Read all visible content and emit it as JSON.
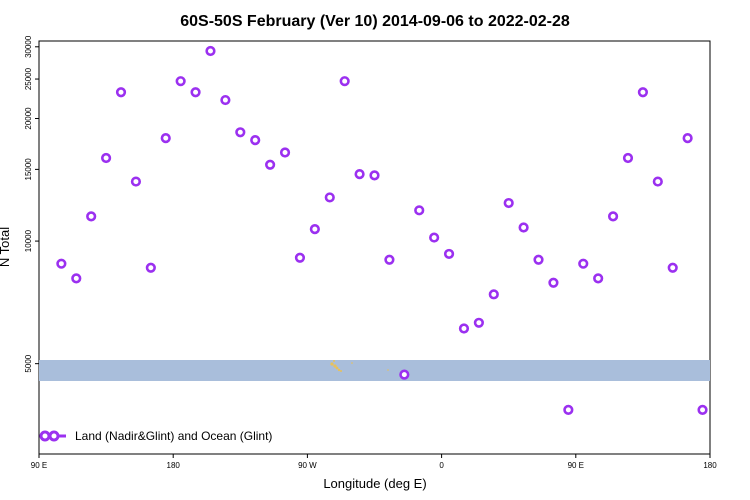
{
  "chart_data": {
    "type": "scatter",
    "title": "60S-50S February (Ver 10)   2014-09-06 to 2022-02-28",
    "xlabel": "Longitude (deg E)",
    "ylabel": "N Total",
    "xlim": [
      90,
      540
    ],
    "ylim": [
      3000,
      31000
    ],
    "y_scale": "log",
    "x_ticks": [
      {
        "value": 90,
        "label": "90 E"
      },
      {
        "value": 180,
        "label": "180"
      },
      {
        "value": 270,
        "label": "90 W"
      },
      {
        "value": 360,
        "label": "0"
      },
      {
        "value": 450,
        "label": "90 E"
      },
      {
        "value": 540,
        "label": "180"
      }
    ],
    "y_ticks": [
      {
        "value": 5000,
        "label": "5000"
      },
      {
        "value": 10000,
        "label": "10000"
      },
      {
        "value": 15000,
        "label": "15000"
      },
      {
        "value": 20000,
        "label": "20000"
      },
      {
        "value": 25000,
        "label": "25000"
      },
      {
        "value": 30000,
        "label": "30000"
      }
    ],
    "band": {
      "color": "#a9bedb"
    },
    "series": [
      {
        "name": "Land (Nadir&Glint) and Ocean (Glint)",
        "color": "#9b30f0",
        "marker": "open-circle",
        "x": [
          105,
          115,
          125,
          135,
          145,
          155,
          165,
          175,
          185,
          195,
          205,
          215,
          225,
          235,
          245,
          255,
          265,
          275,
          285,
          295,
          305,
          315,
          325,
          335,
          345,
          355,
          365,
          375,
          385,
          395,
          405,
          415,
          425,
          435,
          445,
          455,
          465,
          475,
          485,
          495,
          505,
          515,
          525,
          535
        ],
        "y": [
          8800,
          8100,
          11500,
          16000,
          23200,
          14000,
          8600,
          17900,
          24700,
          23200,
          29300,
          22200,
          18500,
          17700,
          15400,
          16500,
          9100,
          10700,
          12800,
          24700,
          14600,
          14500,
          9000,
          4700,
          11900,
          10200,
          9300,
          6100,
          6300,
          7400,
          12400,
          10800,
          9000,
          7900,
          3850,
          8800,
          8100,
          11500,
          16000,
          23200,
          14000,
          8600,
          17900,
          3850
        ]
      }
    ],
    "legend_position": "bottom-left",
    "grid": false
  }
}
